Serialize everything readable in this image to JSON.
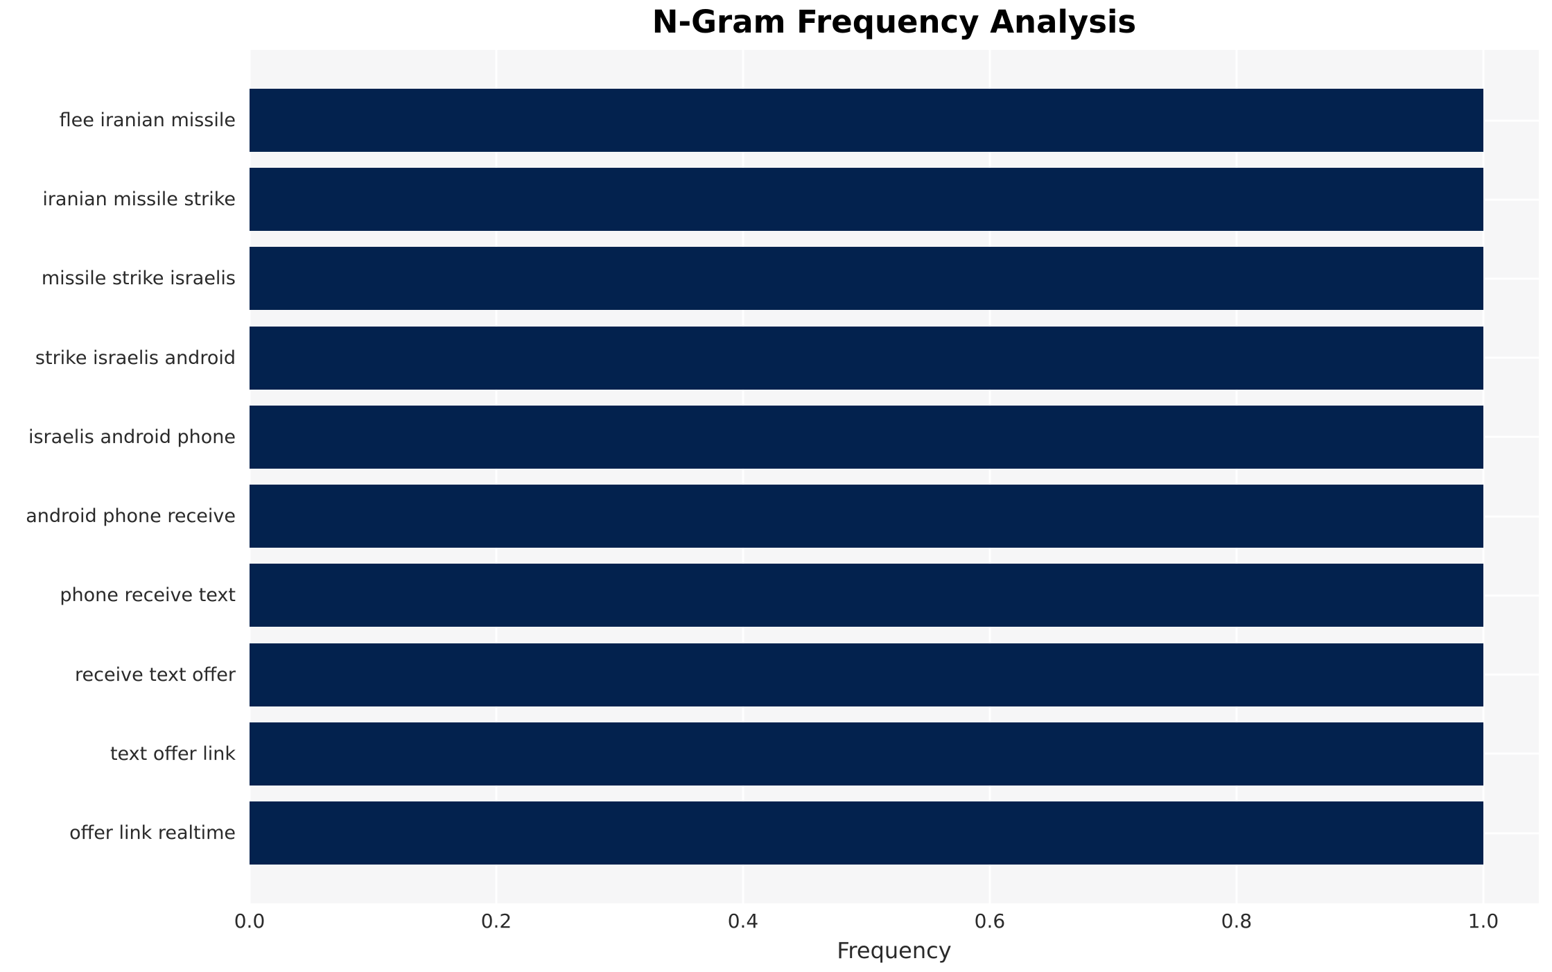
{
  "colors": {
    "bar": "#03224e",
    "plot_background": "#f6f6f7",
    "gridline": "#ffffff",
    "axis_text": "#2a2a2a",
    "title_text": "#000000",
    "page_background": "#ffffff"
  },
  "chart_data": {
    "type": "bar",
    "orientation": "horizontal",
    "title": "N-Gram Frequency Analysis",
    "xlabel": "Frequency",
    "ylabel": "",
    "categories": [
      "flee iranian missile",
      "iranian missile strike",
      "missile strike israelis",
      "strike israelis android",
      "israelis android phone",
      "android phone receive",
      "phone receive text",
      "receive text offer",
      "text offer link",
      "offer link realtime"
    ],
    "values": [
      1.0,
      1.0,
      1.0,
      1.0,
      1.0,
      1.0,
      1.0,
      1.0,
      1.0,
      1.0
    ],
    "xlim": [
      0.0,
      1.0
    ],
    "xlim_display": [
      0.0,
      1.045
    ],
    "xticks": [
      0.0,
      0.2,
      0.4,
      0.6,
      0.8,
      1.0
    ],
    "xtick_labels": [
      "0.0",
      "0.2",
      "0.4",
      "0.6",
      "0.8",
      "1.0"
    ],
    "grid": true,
    "legend": false
  }
}
